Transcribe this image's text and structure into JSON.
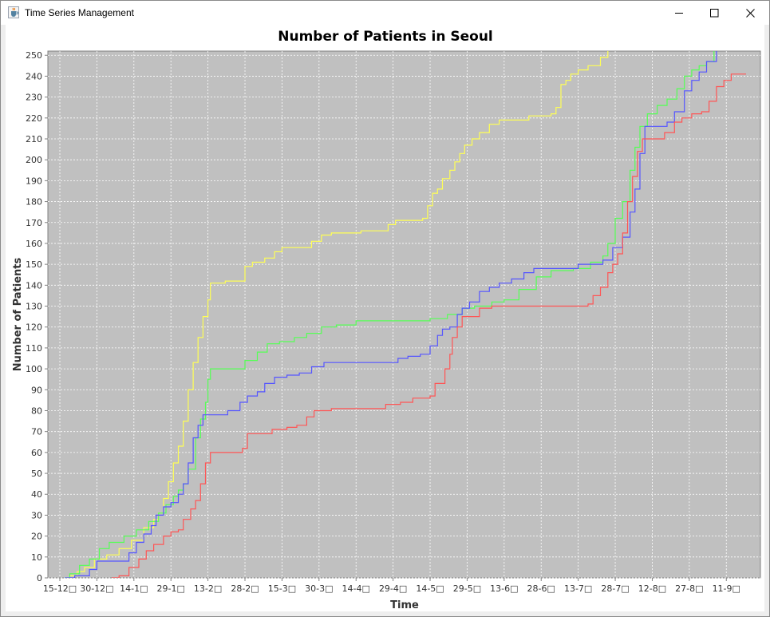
{
  "window": {
    "title": "Time Series Management",
    "icon": "java-cup-icon",
    "controls": [
      "minimize-icon",
      "maximize-icon",
      "close-icon"
    ]
  },
  "colors": {
    "plot_background": "#c0c0c0",
    "gridline": "#ffffff",
    "series": [
      "#ffff55",
      "#55ff55",
      "#5555ff",
      "#ff5555"
    ]
  },
  "chart_data": {
    "type": "line",
    "title": "Number of Patients in Seoul",
    "xlabel": "Time",
    "ylabel": "Number of Patients",
    "ylim": [
      0,
      252
    ],
    "yticks": [
      0,
      10,
      20,
      30,
      40,
      50,
      60,
      70,
      80,
      90,
      100,
      110,
      120,
      130,
      140,
      150,
      160,
      170,
      180,
      190,
      200,
      210,
      220,
      230,
      240,
      250
    ],
    "xlim": [
      0,
      278
    ],
    "xticks": [
      {
        "x": 0,
        "label": "15-12□"
      },
      {
        "x": 15,
        "label": "30-12□"
      },
      {
        "x": 30,
        "label": "14-1□"
      },
      {
        "x": 45,
        "label": "29-1□"
      },
      {
        "x": 60,
        "label": "13-2□"
      },
      {
        "x": 75,
        "label": "28-2□"
      },
      {
        "x": 90,
        "label": "15-3□"
      },
      {
        "x": 105,
        "label": "30-3□"
      },
      {
        "x": 120,
        "label": "14-4□"
      },
      {
        "x": 135,
        "label": "29-4□"
      },
      {
        "x": 150,
        "label": "14-5□"
      },
      {
        "x": 165,
        "label": "29-5□"
      },
      {
        "x": 180,
        "label": "13-6□"
      },
      {
        "x": 195,
        "label": "28-6□"
      },
      {
        "x": 210,
        "label": "13-7□"
      },
      {
        "x": 225,
        "label": "28-7□"
      },
      {
        "x": 240,
        "label": "12-8□"
      },
      {
        "x": 255,
        "label": "27-8□"
      },
      {
        "x": 270,
        "label": "11-9□"
      }
    ],
    "grid": true,
    "legend": "none",
    "series": [
      {
        "color": "#ffff55",
        "points": [
          [
            2,
            0
          ],
          [
            4,
            1
          ],
          [
            7,
            3
          ],
          [
            10,
            5
          ],
          [
            14,
            9
          ],
          [
            19,
            11
          ],
          [
            24,
            14
          ],
          [
            29,
            18
          ],
          [
            34,
            24
          ],
          [
            38,
            28
          ],
          [
            40,
            31
          ],
          [
            42,
            38
          ],
          [
            44,
            46
          ],
          [
            46,
            55
          ],
          [
            48,
            63
          ],
          [
            50,
            75
          ],
          [
            52,
            90
          ],
          [
            54,
            103
          ],
          [
            56,
            115
          ],
          [
            58,
            125
          ],
          [
            60,
            133
          ],
          [
            61,
            141
          ],
          [
            64,
            141
          ],
          [
            67,
            142
          ],
          [
            73,
            142
          ],
          [
            75,
            149
          ],
          [
            78,
            151
          ],
          [
            83,
            153
          ],
          [
            87,
            156
          ],
          [
            90,
            158
          ],
          [
            99,
            158
          ],
          [
            102,
            161
          ],
          [
            106,
            164
          ],
          [
            110,
            165
          ],
          [
            120,
            165
          ],
          [
            122,
            166
          ],
          [
            130,
            166
          ],
          [
            133,
            169
          ],
          [
            136,
            171
          ],
          [
            140,
            171
          ],
          [
            147,
            172
          ],
          [
            149,
            178
          ],
          [
            151,
            184
          ],
          [
            153,
            186
          ],
          [
            155,
            191
          ],
          [
            158,
            195
          ],
          [
            160,
            199
          ],
          [
            162,
            203
          ],
          [
            164,
            207
          ],
          [
            167,
            210
          ],
          [
            170,
            213
          ],
          [
            174,
            217
          ],
          [
            178,
            219
          ],
          [
            186,
            219
          ],
          [
            190,
            221
          ],
          [
            199,
            222
          ],
          [
            201,
            225
          ],
          [
            203,
            236
          ],
          [
            205,
            238
          ],
          [
            207,
            241
          ],
          [
            210,
            243
          ],
          [
            214,
            245
          ],
          [
            219,
            249
          ],
          [
            222,
            252
          ]
        ]
      },
      {
        "color": "#55ff55",
        "points": [
          [
            2,
            0
          ],
          [
            4,
            2
          ],
          [
            8,
            6
          ],
          [
            12,
            9
          ],
          [
            16,
            14
          ],
          [
            20,
            17
          ],
          [
            26,
            20
          ],
          [
            31,
            23
          ],
          [
            36,
            27
          ],
          [
            40,
            31
          ],
          [
            43,
            35
          ],
          [
            46,
            39
          ],
          [
            48,
            42
          ],
          [
            50,
            45
          ],
          [
            52,
            52
          ],
          [
            55,
            67
          ],
          [
            57,
            76
          ],
          [
            59,
            84
          ],
          [
            60,
            95
          ],
          [
            61,
            100
          ],
          [
            70,
            100
          ],
          [
            73,
            100
          ],
          [
            75,
            104
          ],
          [
            80,
            108
          ],
          [
            84,
            112
          ],
          [
            89,
            113
          ],
          [
            95,
            115
          ],
          [
            100,
            117
          ],
          [
            106,
            120
          ],
          [
            112,
            121
          ],
          [
            120,
            123
          ],
          [
            140,
            123
          ],
          [
            150,
            124
          ],
          [
            157,
            126
          ],
          [
            163,
            129
          ],
          [
            168,
            130
          ],
          [
            175,
            132
          ],
          [
            180,
            133
          ],
          [
            186,
            138
          ],
          [
            193,
            144
          ],
          [
            199,
            147
          ],
          [
            208,
            148
          ],
          [
            215,
            151
          ],
          [
            220,
            154
          ],
          [
            222,
            160
          ],
          [
            225,
            172
          ],
          [
            228,
            180
          ],
          [
            231,
            195
          ],
          [
            233,
            206
          ],
          [
            235,
            216
          ],
          [
            238,
            222
          ],
          [
            242,
            226
          ],
          [
            246,
            229
          ],
          [
            250,
            234
          ],
          [
            253,
            240
          ],
          [
            256,
            243
          ],
          [
            259,
            245
          ],
          [
            262,
            247
          ],
          [
            265,
            252
          ]
        ]
      },
      {
        "color": "#5555ff",
        "points": [
          [
            2,
            0
          ],
          [
            6,
            1
          ],
          [
            12,
            4
          ],
          [
            15,
            8
          ],
          [
            24,
            8
          ],
          [
            28,
            12
          ],
          [
            31,
            17
          ],
          [
            34,
            21
          ],
          [
            37,
            25
          ],
          [
            39,
            30
          ],
          [
            42,
            34
          ],
          [
            45,
            36
          ],
          [
            48,
            40
          ],
          [
            50,
            45
          ],
          [
            52,
            55
          ],
          [
            54,
            67
          ],
          [
            56,
            73
          ],
          [
            58,
            78
          ],
          [
            64,
            78
          ],
          [
            68,
            80
          ],
          [
            71,
            80
          ],
          [
            73,
            84
          ],
          [
            76,
            87
          ],
          [
            80,
            89
          ],
          [
            83,
            93
          ],
          [
            87,
            96
          ],
          [
            92,
            97
          ],
          [
            97,
            98
          ],
          [
            102,
            101
          ],
          [
            107,
            103
          ],
          [
            120,
            103
          ],
          [
            132,
            103
          ],
          [
            137,
            105
          ],
          [
            141,
            106
          ],
          [
            146,
            107
          ],
          [
            150,
            111
          ],
          [
            153,
            116
          ],
          [
            155,
            119
          ],
          [
            158,
            120
          ],
          [
            161,
            126
          ],
          [
            163,
            129
          ],
          [
            166,
            132
          ],
          [
            170,
            137
          ],
          [
            174,
            139
          ],
          [
            178,
            141
          ],
          [
            183,
            143
          ],
          [
            188,
            146
          ],
          [
            192,
            148
          ],
          [
            205,
            148
          ],
          [
            210,
            150
          ],
          [
            214,
            150
          ],
          [
            220,
            152
          ],
          [
            224,
            158
          ],
          [
            228,
            163
          ],
          [
            231,
            175
          ],
          [
            233,
            186
          ],
          [
            235,
            203
          ],
          [
            237,
            216
          ],
          [
            241,
            216
          ],
          [
            246,
            218
          ],
          [
            249,
            223
          ],
          [
            253,
            233
          ],
          [
            256,
            238
          ],
          [
            259,
            242
          ],
          [
            262,
            247
          ],
          [
            266,
            252
          ]
        ]
      },
      {
        "color": "#ff5555",
        "points": [
          [
            21,
            0
          ],
          [
            24,
            1
          ],
          [
            28,
            5
          ],
          [
            32,
            9
          ],
          [
            35,
            13
          ],
          [
            38,
            16
          ],
          [
            42,
            20
          ],
          [
            45,
            22
          ],
          [
            48,
            23
          ],
          [
            50,
            28
          ],
          [
            53,
            33
          ],
          [
            55,
            37
          ],
          [
            57,
            45
          ],
          [
            59,
            55
          ],
          [
            61,
            60
          ],
          [
            70,
            60
          ],
          [
            74,
            62
          ],
          [
            76,
            69
          ],
          [
            83,
            69
          ],
          [
            86,
            71
          ],
          [
            92,
            72
          ],
          [
            96,
            73
          ],
          [
            100,
            77
          ],
          [
            103,
            80
          ],
          [
            110,
            81
          ],
          [
            120,
            81
          ],
          [
            128,
            81
          ],
          [
            132,
            83
          ],
          [
            138,
            84
          ],
          [
            143,
            86
          ],
          [
            150,
            87
          ],
          [
            152,
            93
          ],
          [
            156,
            100
          ],
          [
            158,
            107
          ],
          [
            159,
            115
          ],
          [
            161,
            120
          ],
          [
            163,
            125
          ],
          [
            167,
            125
          ],
          [
            170,
            129
          ],
          [
            175,
            130
          ],
          [
            190,
            130
          ],
          [
            210,
            130
          ],
          [
            214,
            131
          ],
          [
            216,
            135
          ],
          [
            219,
            139
          ],
          [
            222,
            146
          ],
          [
            224,
            150
          ],
          [
            226,
            155
          ],
          [
            228,
            165
          ],
          [
            230,
            180
          ],
          [
            232,
            192
          ],
          [
            234,
            204
          ],
          [
            236,
            210
          ],
          [
            241,
            210
          ],
          [
            245,
            213
          ],
          [
            249,
            218
          ],
          [
            252,
            220
          ],
          [
            256,
            222
          ],
          [
            260,
            223
          ],
          [
            263,
            228
          ],
          [
            266,
            235
          ],
          [
            269,
            238
          ],
          [
            272,
            241
          ],
          [
            278,
            241
          ]
        ]
      }
    ]
  }
}
